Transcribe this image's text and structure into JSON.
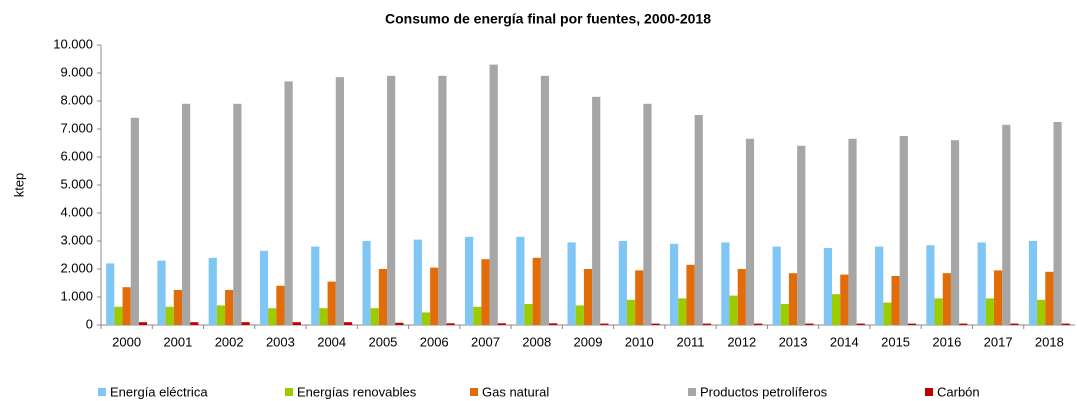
{
  "chart_data": {
    "type": "bar",
    "title": "Consumo de energía final por fuentes, 2000-2018",
    "y_label": "ktep",
    "categories": [
      "2000",
      "2001",
      "2002",
      "2003",
      "2004",
      "2005",
      "2006",
      "2007",
      "2008",
      "2009",
      "2010",
      "2011",
      "2012",
      "2013",
      "2014",
      "2015",
      "2016",
      "2017",
      "2018"
    ],
    "series": [
      {
        "name": "Energía eléctrica",
        "color": "#7fc6f5",
        "values": [
          2200,
          2300,
          2400,
          2650,
          2800,
          3000,
          3050,
          3150,
          3150,
          2950,
          3000,
          2900,
          2950,
          2800,
          2750,
          2800,
          2850,
          2950,
          3000
        ]
      },
      {
        "name": "Energías renovables",
        "color": "#9ccc00",
        "values": [
          650,
          650,
          700,
          600,
          600,
          600,
          450,
          650,
          750,
          700,
          900,
          950,
          1050,
          750,
          1100,
          800,
          950,
          950,
          900
        ]
      },
      {
        "name": "Gas natural",
        "color": "#e36c0a",
        "values": [
          1350,
          1250,
          1250,
          1400,
          1550,
          2000,
          2050,
          2350,
          2400,
          2000,
          1950,
          2150,
          2000,
          1850,
          1800,
          1750,
          1850,
          1950,
          1900
        ]
      },
      {
        "name": "Productos petrolíferos",
        "color": "#a6a6a6",
        "values": [
          7400,
          7900,
          7900,
          8700,
          8850,
          8900,
          8900,
          9300,
          8900,
          8150,
          7900,
          7500,
          6650,
          6400,
          6650,
          6750,
          6600,
          7150,
          7250
        ]
      },
      {
        "name": "Carbón",
        "color": "#c00000",
        "values": [
          100,
          100,
          100,
          100,
          100,
          80,
          60,
          60,
          60,
          50,
          50,
          50,
          50,
          50,
          50,
          50,
          50,
          50,
          50
        ]
      }
    ],
    "ylim": [
      0,
      10000
    ],
    "yticks": [
      0,
      {
        "value": 1000,
        "label": "1.000"
      },
      {
        "value": 2000,
        "label": "2.000"
      },
      {
        "value": 3000,
        "label": "3.000"
      },
      {
        "value": 4000,
        "label": "4.000"
      },
      {
        "value": 5000,
        "label": "5.000"
      },
      {
        "value": 6000,
        "label": "6.000"
      },
      {
        "value": 7000,
        "label": "7.000"
      },
      {
        "value": 8000,
        "label": "8.000"
      },
      {
        "value": 9000,
        "label": "9.000"
      },
      {
        "value": 10000,
        "label": "10.000"
      }
    ],
    "grid": false,
    "legend": "bottom"
  }
}
